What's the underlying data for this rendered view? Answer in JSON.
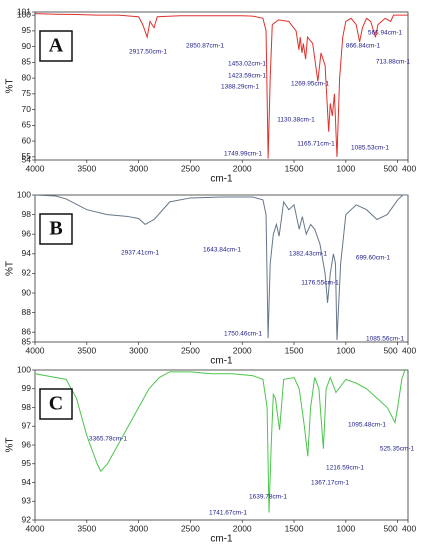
{
  "chart_data": [
    {
      "type": "line",
      "label": "A",
      "xlabel": "cm-1",
      "ylabel": "%T",
      "color": "#e0302c",
      "xlim": [
        4000,
        400
      ],
      "ylim": [
        54,
        101
      ],
      "xticks": [
        4000,
        3500,
        3000,
        2500,
        2000,
        1500,
        1000,
        500,
        400
      ],
      "yticks": [
        54,
        55,
        60,
        65,
        70,
        75,
        80,
        85,
        90,
        95,
        100,
        101
      ],
      "x": [
        4000,
        3800,
        3600,
        3400,
        3200,
        3000,
        2960,
        2917.5,
        2890,
        2850.87,
        2820,
        2600,
        2400,
        2200,
        2000,
        1900,
        1800,
        1770,
        1749.99,
        1730,
        1710,
        1650,
        1550,
        1480,
        1453.02,
        1440,
        1423.59,
        1410,
        1388.29,
        1370,
        1320,
        1269.95,
        1240,
        1200,
        1165.71,
        1150,
        1130.38,
        1110,
        1085.53,
        1060,
        1030,
        1000,
        950,
        900,
        866.84,
        840,
        800,
        760,
        713.88,
        690,
        620,
        566.94,
        540,
        480,
        400
      ],
      "values": [
        100.5,
        100.3,
        100.2,
        100,
        100,
        99.5,
        97,
        93,
        98,
        96,
        99.5,
        99.8,
        99.8,
        99.8,
        99.8,
        99.7,
        99,
        95,
        54.5,
        80,
        97,
        98.5,
        98,
        95,
        89,
        93,
        88,
        91,
        86,
        93,
        91,
        79,
        88,
        84,
        63,
        72,
        68,
        75,
        55,
        80,
        93,
        98,
        99,
        97,
        91.5,
        96,
        99,
        98,
        93,
        97,
        99,
        98,
        100,
        100,
        100
      ],
      "annotations": [
        "2917.50cm-1",
        "2850.87cm-1",
        "1453.02cm-1",
        "1423.59cm-1",
        "1388.29cm-1",
        "1269.95cm-1",
        "1130.38cm-1",
        "1749.99cm-1",
        "1165.71cm-1",
        "1085.53cm-1",
        "866.84cm-1",
        "566.94cm-1",
        "713.88cm-1"
      ]
    },
    {
      "type": "line",
      "label": "B",
      "xlabel": "cm-1",
      "ylabel": "%T",
      "color": "#66768a",
      "xlim": [
        4000,
        400
      ],
      "ylim": [
        85,
        100
      ],
      "xticks": [
        4000,
        3500,
        3000,
        2500,
        2000,
        1500,
        1000,
        500,
        400
      ],
      "yticks": [
        85,
        86,
        88,
        90,
        92,
        94,
        96,
        98,
        100
      ],
      "x": [
        4000,
        3800,
        3700,
        3500,
        3300,
        3100,
        3000,
        2937.41,
        2850,
        2700,
        2500,
        2200,
        1900,
        1800,
        1770,
        1750.46,
        1730,
        1700,
        1670,
        1643.84,
        1600,
        1550,
        1500,
        1450,
        1420,
        1382.43,
        1340,
        1300,
        1250,
        1200,
        1176.55,
        1150,
        1120,
        1100,
        1085.56,
        1050,
        1000,
        900,
        800,
        699.6,
        600,
        500,
        450,
        400
      ],
      "values": [
        100,
        99.9,
        99.6,
        98.5,
        98,
        97.8,
        97.6,
        97,
        97.5,
        99.3,
        99.7,
        99.8,
        99.8,
        99.5,
        98,
        85.4,
        93,
        96,
        97,
        95.8,
        99.3,
        98.5,
        99,
        96.5,
        97.8,
        96,
        97,
        96.5,
        95,
        92,
        89,
        92,
        94,
        93,
        85.2,
        93,
        98,
        99,
        98.5,
        97.5,
        98,
        99.5,
        100,
        100
      ],
      "annotations": [
        "2937.41cm-1",
        "1643.84cm-1",
        "1382.43cm-1",
        "699.60cm-1",
        "1176.55cm-1",
        "1750.46cm-1",
        "1085.56cm-1"
      ]
    },
    {
      "type": "line",
      "label": "C",
      "xlabel": "cm-1",
      "ylabel": "%T",
      "color": "#4cc44c",
      "xlim": [
        4000,
        400
      ],
      "ylim": [
        92,
        100
      ],
      "xticks": [
        4000,
        3500,
        3000,
        2500,
        2000,
        1500,
        1000,
        500,
        400
      ],
      "yticks": [
        92,
        93,
        94,
        95,
        96,
        97,
        98,
        99,
        100
      ],
      "x": [
        4000,
        3700,
        3600,
        3500,
        3400,
        3365.78,
        3300,
        3200,
        3100,
        3000,
        2900,
        2800,
        2700,
        2500,
        2300,
        2100,
        1900,
        1800,
        1760,
        1741.67,
        1720,
        1700,
        1680,
        1639.78,
        1600,
        1500,
        1450,
        1400,
        1367.17,
        1340,
        1300,
        1260,
        1216.59,
        1190,
        1150,
        1095.48,
        1000,
        900,
        800,
        700,
        600,
        525.35,
        500,
        460,
        430
      ],
      "values": [
        99.8,
        99.5,
        98.5,
        96.5,
        95,
        94.6,
        95,
        96,
        97,
        98,
        99,
        99.6,
        99.9,
        99.9,
        99.8,
        99.8,
        99.7,
        99.5,
        98,
        92.4,
        96,
        98.7,
        98.5,
        96.8,
        99.5,
        99.6,
        99,
        97,
        95.4,
        98,
        99.6,
        99,
        95.8,
        99,
        99.6,
        98.8,
        99.5,
        99.3,
        99,
        98.5,
        98,
        97.2,
        98,
        99.5,
        100
      ],
      "annotations": [
        "3365.78cm-1",
        "1741.67cm-1",
        "1639.78cm-1",
        "1367.17cm-1",
        "1216.59cm-1",
        "1095.48cm-1",
        "525.35cm-1"
      ]
    }
  ]
}
